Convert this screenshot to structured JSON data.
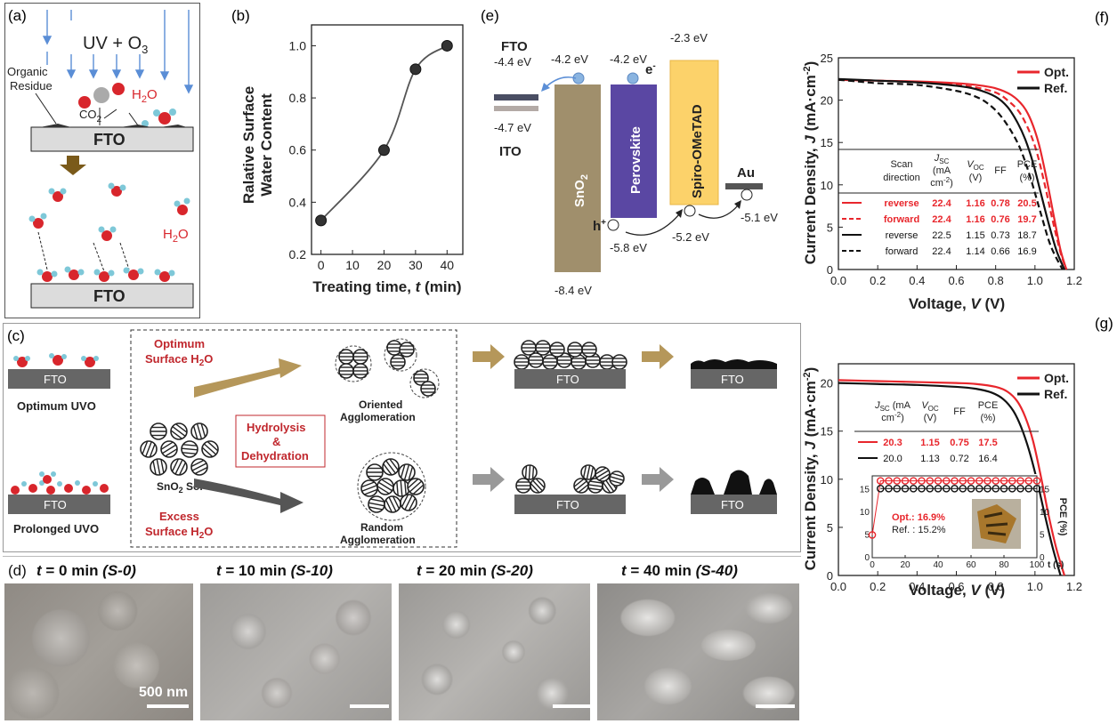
{
  "panel_labels": {
    "a": "(a)",
    "b": "(b)",
    "c": "(c)",
    "d": "(d)",
    "e": "(e)",
    "f": "(f)",
    "g": "(g)"
  },
  "panel_a": {
    "uv": "UV + O",
    "uv_sub": "3",
    "organic": "Organic",
    "residue": "Residue",
    "co2": "CO",
    "co2_sub": "2",
    "h2o_top": "H",
    "h2o_top_sub": "2",
    "h2o_top_end": "O",
    "fto_top": "FTO",
    "h2o_bottom": "H",
    "h2o_bottom_sub": "2",
    "h2o_bottom_end": "O",
    "fto_bottom": "FTO"
  },
  "panel_c": {
    "fto": "FTO",
    "optimum_uvo": "Optimum UVO",
    "prolonged_uvo": "Prolonged UVO",
    "optimum_surface_1": "Optimum",
    "optimum_surface_2": "Surface H",
    "optimum_surface_sub": "2",
    "optimum_surface_end": "O",
    "excess_surface_1": "Excess",
    "excess_surface_2": "Surface H",
    "excess_surface_sub": "2",
    "excess_surface_end": "O",
    "sol": "SnO",
    "sol_sub": "2",
    "sol_end": " Sol",
    "hyd_1": "Hydrolysis",
    "hyd_2": "&",
    "hyd_3": "Dehydration",
    "oriented_1": "Oriented",
    "oriented_2": "Agglomeration",
    "random_1": "Random",
    "random_2": "Agglomeration"
  },
  "panel_d": {
    "images": [
      {
        "t": "t",
        "eq": " = 0 min ",
        "s": "(S-0)"
      },
      {
        "t": "t",
        "eq": " = 10 min ",
        "s": "(S-10)"
      },
      {
        "t": "t",
        "eq": " = 20 min ",
        "s": "(S-20)"
      },
      {
        "t": "t",
        "eq": " = 40 min ",
        "s": "(S-40)"
      }
    ],
    "scalebar": "500 nm"
  },
  "panel_e": {
    "fto": "FTO",
    "fto_top": "-4.4 eV",
    "fto_bot": "-4.7 eV",
    "ito": "ITO",
    "sno2": "SnO",
    "sno2_sub": "2",
    "sno2_cb": "-4.2 eV",
    "sno2_vb": "-8.4 eV",
    "perov": "Perovskite",
    "perov_cb": "-4.2 eV",
    "perov_vb": "-5.8 eV",
    "spiro": "Spiro-OMeTAD",
    "spiro_top": "-2.3 eV",
    "spiro_bot": "-5.2 eV",
    "au": "Au",
    "au_val": "-5.1 eV",
    "electron": "e",
    "electron_sup": "-",
    "hole": "h",
    "hole_sup": "+"
  },
  "chart_data": [
    {
      "type": "scatter",
      "panel": "b",
      "x": [
        0,
        20,
        30,
        40
      ],
      "y": [
        0.33,
        0.6,
        0.91,
        1.0
      ],
      "xlabel_main": "Treating time, ",
      "xlabel_var": "t",
      "xlabel_unit": " (min)",
      "ylabel_1": "Ralative Surface",
      "ylabel_2": "Water Content",
      "xlim": [
        -3,
        45
      ],
      "ylim": [
        0.2,
        1.08
      ],
      "xticks": [
        "0",
        "10",
        "20",
        "30",
        "40"
      ],
      "yticks": [
        "0.2",
        "0.4",
        "0.6",
        "0.8",
        "1.0"
      ]
    },
    {
      "type": "line",
      "panel": "f",
      "xlabel_main": "Voltage, ",
      "xlabel_var": "V",
      "xlabel_unit": " (V)",
      "ylabel_main": "Current Density, ",
      "ylabel_var": "J",
      "ylabel_unit": " (mA·cm",
      "ylabel_sup": "-2",
      "ylabel_end": ")",
      "xlim": [
        0,
        1.2
      ],
      "ylim": [
        0,
        25
      ],
      "xticks": [
        "0.0",
        "0.2",
        "0.4",
        "0.6",
        "0.8",
        "1.0",
        "1.2"
      ],
      "yticks": [
        "0",
        "5",
        "10",
        "15",
        "20",
        "25"
      ],
      "legend": [
        {
          "name": "Opt.",
          "color": "#e8262c"
        },
        {
          "name": "Ref.",
          "color": "#111111"
        }
      ],
      "series": [
        {
          "name": "Opt. reverse",
          "color": "#e8262c",
          "dash": false,
          "x": [
            0,
            0.2,
            0.4,
            0.6,
            0.7,
            0.8,
            0.88,
            0.94,
            0.98,
            1.02,
            1.06,
            1.1,
            1.13,
            1.16
          ],
          "y": [
            22.4,
            22.3,
            22.2,
            22.0,
            21.8,
            21.4,
            20.6,
            19.3,
            17.6,
            14.8,
            10.6,
            5.8,
            2.3,
            0
          ]
        },
        {
          "name": "Opt. forward",
          "color": "#e8262c",
          "dash": true,
          "x": [
            0,
            0.2,
            0.4,
            0.6,
            0.7,
            0.8,
            0.86,
            0.92,
            0.97,
            1.01,
            1.05,
            1.09,
            1.13,
            1.16
          ],
          "y": [
            22.4,
            22.3,
            22.1,
            21.8,
            21.5,
            20.9,
            20.0,
            18.6,
            16.4,
            13.8,
            10.0,
            5.8,
            2.0,
            0
          ]
        },
        {
          "name": "Ref. reverse",
          "color": "#111111",
          "dash": false,
          "x": [
            0,
            0.2,
            0.4,
            0.6,
            0.7,
            0.8,
            0.86,
            0.91,
            0.95,
            0.99,
            1.03,
            1.07,
            1.11,
            1.15
          ],
          "y": [
            22.5,
            22.3,
            22.1,
            21.7,
            21.3,
            20.4,
            19.2,
            17.4,
            15.4,
            12.6,
            9.0,
            5.4,
            2.2,
            0
          ]
        },
        {
          "name": "Ref. forward",
          "color": "#111111",
          "dash": true,
          "x": [
            0,
            0.1,
            0.2,
            0.4,
            0.6,
            0.7,
            0.76,
            0.82,
            0.88,
            0.93,
            0.98,
            1.03,
            1.08,
            1.14
          ],
          "y": [
            22.4,
            22.2,
            22.0,
            21.8,
            21.1,
            20.4,
            19.6,
            18.3,
            16.3,
            14.0,
            10.6,
            6.6,
            2.8,
            0
          ]
        }
      ],
      "table": {
        "headers": [
          {
            "main": "Scan",
            "second": "direction"
          },
          {
            "main": "J",
            "sub": "SC",
            "second": "(mA",
            "third": "cm",
            "third_sup": "-2",
            "third_end": ")"
          },
          {
            "main": "V",
            "sub": "OC",
            "second": "(V)"
          },
          {
            "main": "FF"
          },
          {
            "main": "PCE",
            "second": "(%)"
          }
        ],
        "rows": [
          {
            "color": "#e8262c",
            "dash": false,
            "cells": [
              "reverse",
              "22.4",
              "1.16",
              "0.78",
              "20.5"
            ]
          },
          {
            "color": "#e8262c",
            "dash": true,
            "cells": [
              "forward",
              "22.4",
              "1.16",
              "0.76",
              "19.7"
            ]
          },
          {
            "color": "#111111",
            "dash": false,
            "cells": [
              "reverse",
              "22.5",
              "1.15",
              "0.73",
              "18.7"
            ]
          },
          {
            "color": "#111111",
            "dash": true,
            "cells": [
              "forward",
              "22.4",
              "1.14",
              "0.66",
              "16.9"
            ]
          }
        ]
      }
    },
    {
      "type": "line",
      "panel": "g",
      "xlabel_main": "Voltage, ",
      "xlabel_var": "V",
      "xlabel_unit": " (V)",
      "ylabel_main": "Current Density, ",
      "ylabel_var": "J",
      "ylabel_unit": " (mA·cm",
      "ylabel_sup": "-2",
      "ylabel_end": ")",
      "xlim": [
        0,
        1.2
      ],
      "ylim": [
        0,
        22
      ],
      "xticks": [
        "0.0",
        "0.2",
        "0.4",
        "0.6",
        "0.8",
        "1.0",
        "1.2"
      ],
      "yticks": [
        "0",
        "5",
        "10",
        "15",
        "20"
      ],
      "legend": [
        {
          "name": "Opt.",
          "color": "#e8262c"
        },
        {
          "name": "Ref.",
          "color": "#111111"
        }
      ],
      "series": [
        {
          "name": "Opt.",
          "color": "#e8262c",
          "dash": false,
          "x": [
            0,
            0.2,
            0.4,
            0.6,
            0.7,
            0.8,
            0.86,
            0.91,
            0.95,
            0.99,
            1.03,
            1.07,
            1.11,
            1.15
          ],
          "y": [
            20.3,
            20.2,
            20.1,
            20.0,
            19.9,
            19.6,
            19.1,
            18.1,
            16.5,
            14.0,
            10.3,
            6.2,
            2.7,
            0
          ]
        },
        {
          "name": "Ref.",
          "color": "#111111",
          "dash": false,
          "x": [
            0,
            0.2,
            0.4,
            0.6,
            0.7,
            0.78,
            0.84,
            0.89,
            0.93,
            0.97,
            1.01,
            1.05,
            1.09,
            1.13
          ],
          "y": [
            20.0,
            19.9,
            19.8,
            19.6,
            19.4,
            19.0,
            18.3,
            17.1,
            15.4,
            13.0,
            9.9,
            6.3,
            2.9,
            0
          ]
        }
      ],
      "table": {
        "headers": [
          {
            "main": "J",
            "sub": "SC",
            "main_end": " (mA",
            "second": "cm",
            "second_sup": "-2",
            "second_end": ")"
          },
          {
            "main": "V",
            "sub": "OC",
            "second": "(V)"
          },
          {
            "main": "FF"
          },
          {
            "main": "PCE",
            "second": "(%)"
          }
        ],
        "rows": [
          {
            "color": "#e8262c",
            "cells": [
              "20.3",
              "1.15",
              "0.75",
              "17.5"
            ]
          },
          {
            "color": "#111111",
            "cells": [
              "20.0",
              "1.13",
              "0.72",
              "16.4"
            ]
          }
        ]
      }
    },
    {
      "type": "scatter",
      "panel": "g-inset",
      "xlabel": "t (s)",
      "ylabel": "PCE (%)",
      "xlim": [
        0,
        100
      ],
      "ylim": [
        0,
        18
      ],
      "xticks": [
        "0",
        "20",
        "40",
        "60",
        "80",
        "100"
      ],
      "yticks_left": [
        "0",
        "5",
        "10",
        "15"
      ],
      "yticks_right": [
        "0",
        "5",
        "10",
        "15"
      ],
      "series": [
        {
          "name": "Opt.",
          "color": "#e8262c",
          "value_label": "Opt.: 16.9%",
          "x": [
            0,
            5,
            10,
            15,
            20,
            25,
            30,
            35,
            40,
            45,
            50,
            55,
            60,
            65,
            70,
            75,
            80,
            85,
            90,
            95,
            100
          ],
          "y": [
            5,
            16.9,
            16.9,
            16.9,
            16.9,
            16.9,
            16.9,
            16.9,
            16.9,
            16.9,
            16.9,
            16.9,
            16.9,
            16.9,
            16.9,
            16.9,
            16.9,
            16.9,
            16.9,
            16.9,
            16.9
          ]
        },
        {
          "name": "Ref.",
          "color": "#111111",
          "value_label": "Ref. : 15.2%",
          "x": [
            5,
            10,
            15,
            20,
            25,
            30,
            35,
            40,
            45,
            50,
            55,
            60,
            65,
            70,
            75,
            80,
            85,
            90,
            95,
            100
          ],
          "y": [
            15.2,
            15.2,
            15.2,
            15.2,
            15.2,
            15.2,
            15.2,
            15.2,
            15.2,
            15.2,
            15.2,
            15.2,
            15.2,
            15.2,
            15.2,
            15.2,
            15.2,
            15.2,
            15.2,
            15.2
          ]
        }
      ]
    }
  ]
}
